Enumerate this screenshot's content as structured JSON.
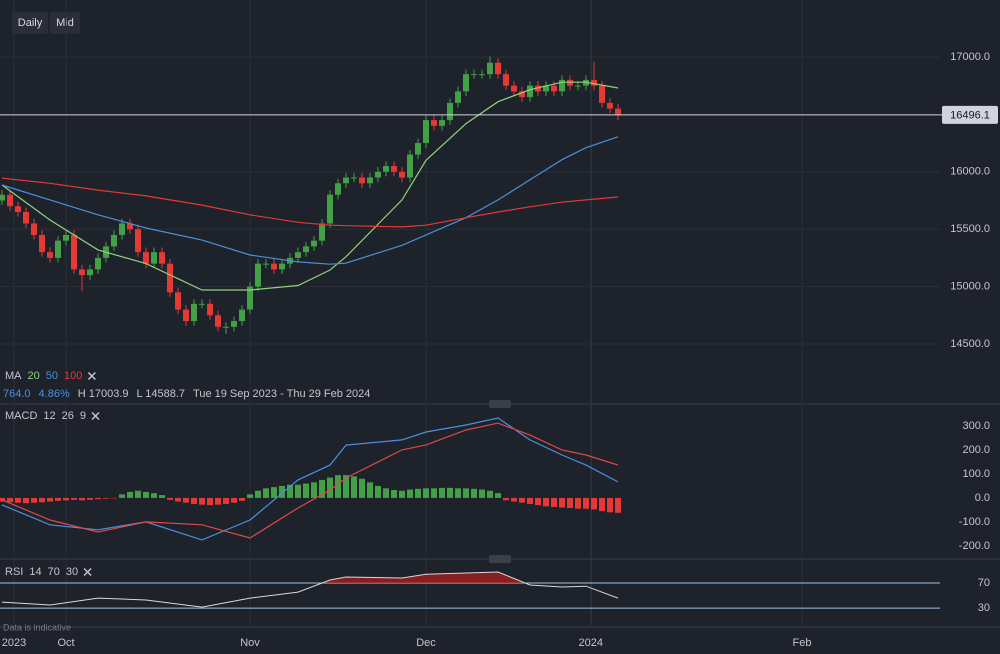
{
  "toolbar": {
    "buttons": [
      "Daily",
      "Mid"
    ]
  },
  "chart_data": [
    {
      "type": "candlestick",
      "legend_title": "MA",
      "info": [
        "764.0",
        "4.86%",
        "H 17003.9",
        "L 14588.7",
        "Tue 19 Sep 2023 - Thu 29 Feb 2024"
      ],
      "open": [
        15750,
        15800,
        15700,
        15650,
        15550,
        15450,
        15300,
        15250,
        15400,
        15450,
        15150,
        15100,
        15150,
        15250,
        15350,
        15450,
        15550,
        15500,
        15300,
        15200,
        15300,
        15200,
        14950,
        14800,
        14700,
        14850,
        14850,
        14750,
        14650,
        14650,
        14700,
        14800,
        15000,
        15200,
        15200,
        15150,
        15200,
        15250,
        15300,
        15350,
        15400,
        15550,
        15800,
        15900,
        15950,
        15950,
        15900,
        15950,
        16000,
        16050,
        16000,
        15950,
        16150,
        16250,
        16450,
        16400,
        16450,
        16600,
        16700,
        16850,
        16850,
        16850,
        16950,
        16850,
        16750,
        16700,
        16650,
        16750,
        16700,
        16750,
        16700,
        16800,
        16750,
        16750,
        16800,
        16750,
        16600,
        16550
      ],
      "high": [
        15840,
        15840,
        15740,
        15690,
        15590,
        15490,
        15340,
        15440,
        15490,
        15490,
        15190,
        15190,
        15290,
        15390,
        15490,
        15590,
        15590,
        15540,
        15340,
        15340,
        15340,
        15240,
        14990,
        14840,
        14890,
        14890,
        14890,
        14790,
        14690,
        14740,
        14840,
        15040,
        15240,
        15240,
        15240,
        15240,
        15290,
        15340,
        15390,
        15440,
        15590,
        15840,
        15940,
        15990,
        15990,
        15990,
        15990,
        16040,
        16090,
        16090,
        16040,
        16190,
        16290,
        16490,
        16490,
        16490,
        16640,
        16740,
        16890,
        16890,
        16890,
        17003.9,
        16990,
        16890,
        16790,
        16740,
        16790,
        16790,
        16790,
        16790,
        16840,
        16840,
        16790,
        16840,
        16960,
        16790,
        16640,
        16590
      ],
      "low": [
        15710,
        15660,
        15610,
        15510,
        15410,
        15260,
        15210,
        15210,
        15360,
        15110,
        14960,
        15060,
        15110,
        15210,
        15310,
        15410,
        15460,
        15260,
        15160,
        15160,
        15160,
        14910,
        14760,
        14660,
        14660,
        14810,
        14710,
        14610,
        14588.7,
        14610,
        14660,
        14760,
        14960,
        15160,
        15110,
        15110,
        15160,
        15210,
        15260,
        15310,
        15360,
        15510,
        15760,
        15860,
        15910,
        15860,
        15860,
        15910,
        15960,
        15960,
        15910,
        15910,
        16110,
        16210,
        16360,
        16360,
        16410,
        16560,
        16660,
        16810,
        16810,
        16810,
        16810,
        16710,
        16660,
        16610,
        16610,
        16660,
        16660,
        16660,
        16660,
        16710,
        16710,
        16710,
        16710,
        16560,
        16510,
        16450
      ],
      "close": [
        15800,
        15700,
        15650,
        15550,
        15450,
        15300,
        15250,
        15400,
        15450,
        15150,
        15100,
        15150,
        15250,
        15350,
        15450,
        15550,
        15500,
        15300,
        15200,
        15300,
        15200,
        14950,
        14800,
        14700,
        14850,
        14850,
        14750,
        14650,
        14650,
        14700,
        14800,
        15000,
        15200,
        15200,
        15150,
        15200,
        15250,
        15300,
        15350,
        15400,
        15550,
        15800,
        15900,
        15950,
        15950,
        15900,
        15950,
        16000,
        16050,
        16000,
        15950,
        16150,
        16250,
        16450,
        16400,
        16450,
        16600,
        16700,
        16850,
        16850,
        16850,
        16950,
        16850,
        16750,
        16700,
        16650,
        16750,
        16700,
        16750,
        16700,
        16800,
        16750,
        16750,
        16800,
        16750,
        16600,
        16550,
        16496.1
      ],
      "up_color": "#43a047",
      "down_color": "#e53935",
      "series": [
        {
          "name": "20",
          "color": "#8fd47e",
          "x": [
            0,
            6,
            12,
            18,
            25,
            31,
            37,
            41,
            43,
            50,
            53,
            58,
            62,
            66,
            70,
            73,
            77
          ],
          "values": [
            15885,
            15580,
            15320,
            15200,
            14970,
            14970,
            15010,
            15145,
            15260,
            15755,
            16100,
            16420,
            16610,
            16715,
            16780,
            16780,
            16730
          ]
        },
        {
          "name": "50",
          "color": "#4a90d9",
          "x": [
            0,
            6,
            12,
            18,
            25,
            31,
            37,
            41,
            43,
            50,
            53,
            58,
            62,
            66,
            70,
            73,
            77
          ],
          "values": [
            15885,
            15755,
            15625,
            15510,
            15405,
            15275,
            15215,
            15195,
            15205,
            15360,
            15450,
            15600,
            15755,
            15930,
            16105,
            16210,
            16305
          ]
        },
        {
          "name": "100",
          "color": "#e53935",
          "x": [
            0,
            6,
            12,
            18,
            25,
            31,
            37,
            41,
            43,
            50,
            53,
            58,
            62,
            66,
            70,
            73,
            77
          ],
          "values": [
            15945,
            15900,
            15840,
            15790,
            15710,
            15625,
            15560,
            15535,
            15530,
            15520,
            15535,
            15600,
            15650,
            15695,
            15735,
            15755,
            15780
          ]
        }
      ],
      "xlim": [
        -0.25,
        124.75
      ],
      "xticks": [
        {
          "value": 1.5,
          "label": "2023"
        },
        {
          "value": 8,
          "label": "Oct"
        },
        {
          "value": 31,
          "label": "Nov"
        },
        {
          "value": 53,
          "label": "Dec"
        },
        {
          "value": 73.6,
          "label": "2024"
        },
        {
          "value": 100,
          "label": "Feb"
        }
      ],
      "ylim": [
        13995,
        17496
      ],
      "yticks": [
        {
          "value": 14500,
          "label": "14500.0"
        },
        {
          "value": 15000,
          "label": "15000.0"
        },
        {
          "value": 15500,
          "label": "15500.0"
        },
        {
          "value": 16000,
          "label": "16000.0"
        },
        {
          "value": 17000,
          "label": "17000.0"
        }
      ],
      "grid": true
    },
    {
      "type": "macd",
      "legend_title": "MACD",
      "params": [
        12,
        26,
        9
      ],
      "series": [
        {
          "color": "#4a90e2",
          "x": [
            0,
            6,
            12,
            18,
            25,
            31,
            37,
            41,
            43,
            50,
            53,
            58,
            62,
            66,
            70,
            73,
            77
          ],
          "values": [
            -29,
            -112,
            -133,
            -100,
            -175,
            -92,
            75,
            137,
            220,
            242,
            275,
            304,
            333,
            242,
            179,
            137,
            67
          ]
        },
        {
          "color": "#e04848",
          "x": [
            0,
            6,
            12,
            18,
            25,
            31,
            37,
            41,
            43,
            50,
            53,
            58,
            62,
            66,
            70,
            73,
            77
          ],
          "values": [
            -8,
            -92,
            -142,
            -100,
            -112,
            -167,
            -42,
            33,
            83,
            200,
            221,
            283,
            312,
            262,
            200,
            179,
            137
          ]
        }
      ],
      "histogram": {
        "up_color": "#43a047",
        "down_color": "#e53935",
        "values": [
          -15,
          -18,
          -20,
          -22,
          -20,
          -18,
          -15,
          -12,
          -10,
          -8,
          -10,
          -8,
          -5,
          -3,
          -2,
          15,
          25,
          30,
          25,
          20,
          12,
          -8,
          -15,
          -20,
          -25,
          -28,
          -30,
          -28,
          -25,
          -20,
          -12,
          15,
          30,
          40,
          45,
          50,
          55,
          55,
          60,
          65,
          75,
          85,
          95,
          95,
          90,
          80,
          65,
          50,
          40,
          33,
          30,
          35,
          38,
          40,
          40,
          42,
          42,
          40,
          40,
          38,
          35,
          30,
          20,
          -10,
          -15,
          -20,
          -25,
          -30,
          -35,
          -38,
          -40,
          -42,
          -45,
          -45,
          -48,
          -55,
          -60,
          -62
        ]
      },
      "ylim": [
        -242,
        379
      ],
      "yticks": [
        {
          "value": 300,
          "label": "300.0"
        },
        {
          "value": 200,
          "label": "200.0"
        },
        {
          "value": 100,
          "label": "100.0"
        },
        {
          "value": 0,
          "label": "0.0"
        },
        {
          "value": -100,
          "label": "-100.0"
        },
        {
          "value": -200,
          "label": "-200.0"
        }
      ]
    },
    {
      "type": "line",
      "legend_title": "RSI",
      "params": [
        14,
        70,
        30
      ],
      "series": [
        {
          "color": "#d9d9d9",
          "x": [
            0,
            6,
            12,
            18,
            25,
            31,
            37,
            41,
            43,
            50,
            53,
            58,
            62,
            66,
            70,
            73,
            77
          ],
          "values": [
            39.6,
            35,
            46,
            43,
            31.6,
            46,
            55.6,
            74.8,
            79.6,
            78,
            84,
            86,
            87.6,
            66.8,
            63.6,
            65,
            46
          ]
        }
      ],
      "ylim": [
        3,
        103.6
      ],
      "yticks": [
        70,
        30
      ],
      "band_color": "#9fc3e6",
      "fill_color": "#b71c1c"
    }
  ],
  "footer": "Data is indicative"
}
